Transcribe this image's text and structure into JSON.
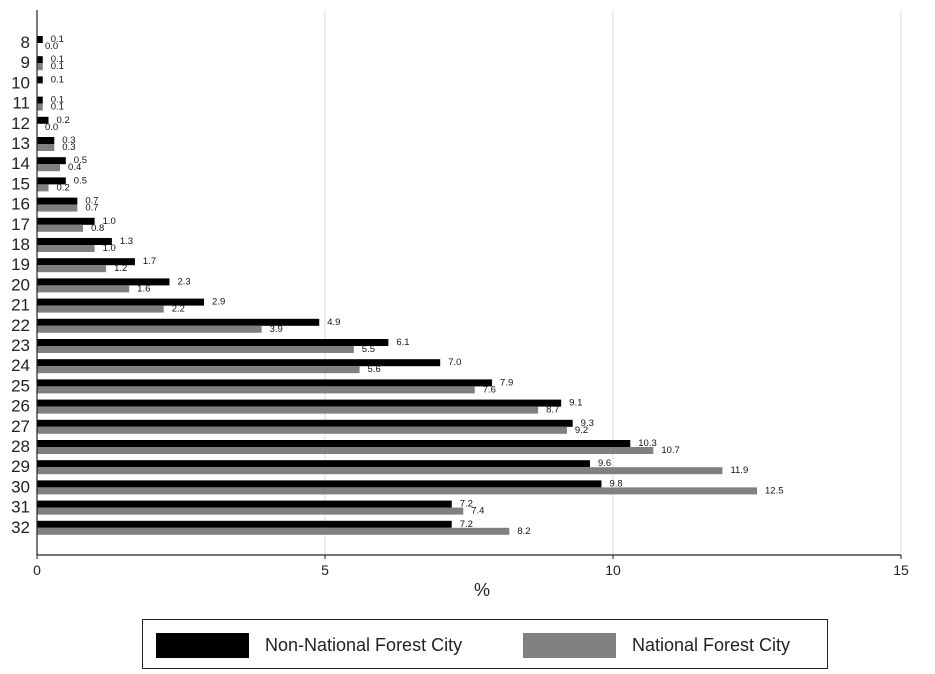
{
  "chart_data": {
    "type": "bar",
    "orientation": "horizontal",
    "categories": [
      "8",
      "9",
      "10",
      "11",
      "12",
      "13",
      "14",
      "15",
      "16",
      "17",
      "18",
      "19",
      "20",
      "21",
      "22",
      "23",
      "24",
      "25",
      "26",
      "27",
      "28",
      "29",
      "30",
      "31",
      "32"
    ],
    "series": [
      {
        "name": "Non-National Forest City",
        "color": "#000000",
        "values": [
          0.1,
          0.1,
          0.1,
          0.1,
          0.2,
          0.3,
          0.5,
          0.5,
          0.7,
          1.0,
          1.3,
          1.7,
          2.3,
          2.9,
          4.9,
          6.1,
          7.0,
          7.9,
          9.1,
          9.3,
          10.3,
          9.6,
          9.8,
          7.2,
          7.2
        ],
        "labels": [
          "0.1",
          "0.1",
          "0.1",
          "0.1",
          "0.2",
          "0.3",
          "0.5",
          "0.5",
          "0.7",
          "1.0",
          "1.3",
          "1.7",
          "2.3",
          "2.9",
          "4.9",
          "6.1",
          "7.0",
          "7.9",
          "9.1",
          "9.3",
          "10.3",
          "9.6",
          "9.8",
          "7.2",
          "7.2"
        ]
      },
      {
        "name": "National Forest City",
        "color": "#808080",
        "values": [
          0.0,
          0.1,
          null,
          0.1,
          0.0,
          0.3,
          0.4,
          0.2,
          0.7,
          0.8,
          1.0,
          1.2,
          1.6,
          2.2,
          3.9,
          5.5,
          5.6,
          7.6,
          8.7,
          9.2,
          10.7,
          11.9,
          12.5,
          7.4,
          8.2
        ],
        "labels": [
          "0.0",
          "0.1",
          "",
          "0.1",
          "0.0",
          "0.3",
          "0.4",
          "0.2",
          "0.7",
          "0.8",
          "1.0",
          "1.2",
          "1.6",
          "2.2",
          "3.9",
          "5.5",
          "5.6",
          "7.6",
          "8.7",
          "9.2",
          "10.7",
          "11.9",
          "12.5",
          "7.4",
          "8.2"
        ]
      }
    ],
    "xlabel": "%",
    "xlim": [
      0,
      15
    ],
    "xticks": [
      0,
      5,
      10,
      15
    ],
    "xtick_labels": [
      "0",
      "5",
      "10",
      "15"
    ],
    "grid": "vertical",
    "legend_position": "bottom"
  }
}
